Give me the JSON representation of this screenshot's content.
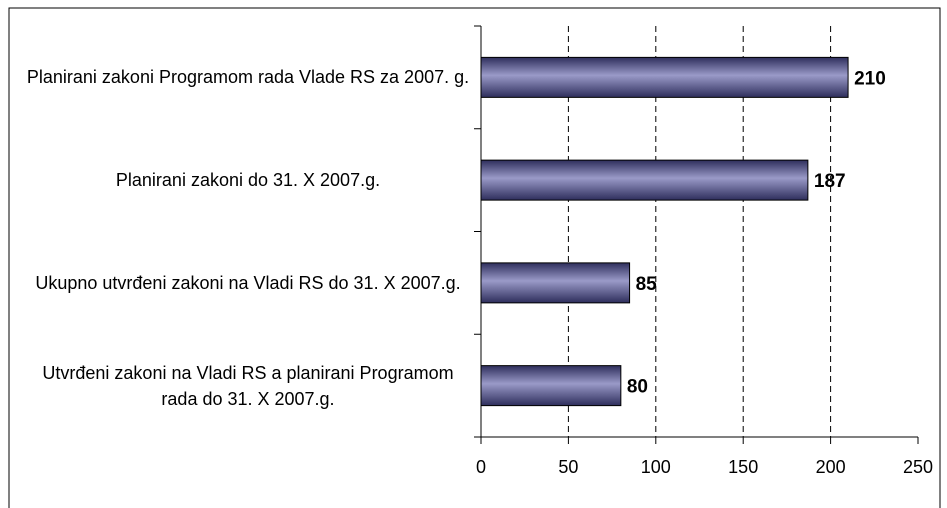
{
  "chart_data": {
    "type": "bar",
    "orientation": "horizontal",
    "categories": [
      "Planirani zakoni Programom rada Vlade RS za 2007. g.",
      "Planirani zakoni do 31. X 2007.g.",
      "Ukupno utvrđeni zakoni na Vladi RS do 31. X 2007.g.",
      "Utvrđeni zakoni na Vladi RS a planirani Programom rada do 31. X 2007.g."
    ],
    "values": [
      210,
      187,
      85,
      80
    ],
    "color": "#4a4a80",
    "xlim": [
      0,
      250
    ],
    "xticks": [
      0,
      50,
      100,
      150,
      200,
      250
    ],
    "grid": true
  }
}
